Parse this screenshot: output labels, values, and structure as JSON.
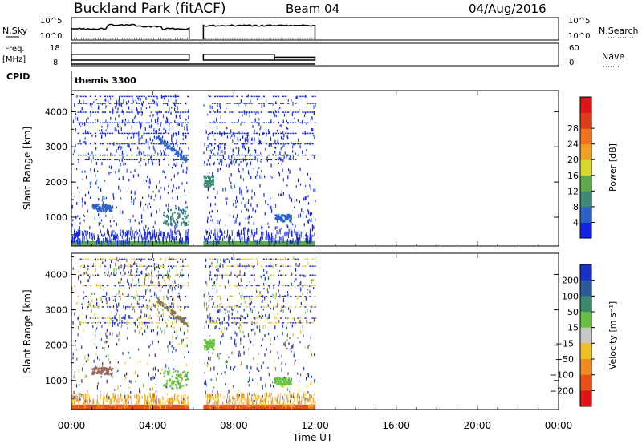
{
  "header": {
    "station": "Buckland Park (fitACF)",
    "beam": "Beam 04",
    "date": "04/Aug/2016"
  },
  "top_panels": {
    "nsky_label": "N.Sky",
    "nsky_ticks": [
      "10^5",
      "10^0"
    ],
    "nsky_right_ticks": [
      "10^5",
      "10^0"
    ],
    "nsearch_label": "N.Search",
    "freq_label_line1": "Freq.",
    "freq_label_line2": "[MHz]",
    "freq_ticks": [
      "18",
      "8"
    ],
    "nave_ticks": [
      "60",
      "0"
    ],
    "nave_label": "Nave",
    "cpid_label": "CPID",
    "cpid_value": "themis 3300"
  },
  "chart_data": [
    {
      "type": "heatmap",
      "name": "power",
      "ylabel": "Slant Range [km]",
      "xlabel": "",
      "x_ticks": [
        "00:00",
        "04:00",
        "08:00",
        "12:00",
        "16:00",
        "20:00",
        "00:00"
      ],
      "x_range_hours": [
        0,
        24
      ],
      "y_ticks": [
        "1000",
        "2000",
        "3000",
        "4000"
      ],
      "y_range_km": [
        180,
        4600
      ],
      "colorbar_label": "Power [dB]",
      "colorbar_ticks": [
        "4",
        "8",
        "12",
        "16",
        "20",
        "24",
        "28"
      ],
      "colorbar_colors": [
        "#1424e6",
        "#2a62c8",
        "#3d8a78",
        "#5caa4a",
        "#d8d82a",
        "#f0a020",
        "#f0701c",
        "#e03a18",
        "#e01414"
      ],
      "data_intervals_hours": [
        [
          0.0,
          5.8
        ],
        [
          6.5,
          12.0
        ]
      ],
      "features": [
        {
          "label": "ground band",
          "range_km": [
            180,
            320
          ],
          "time_hours": [
            0.0,
            12.0
          ],
          "color": "#5caa4a"
        },
        {
          "label": "scatter patch",
          "range_km": [
            1200,
            1400
          ],
          "time_hours": [
            1.0,
            2.0
          ],
          "color": "#2a62c8"
        },
        {
          "label": "scatter patch",
          "range_km": [
            800,
            1300
          ],
          "time_hours": [
            4.5,
            5.8
          ],
          "color": "#3d8a78"
        },
        {
          "label": "scatter patch",
          "range_km": [
            900,
            1100
          ],
          "time_hours": [
            10.0,
            10.8
          ],
          "color": "#2a62c8"
        },
        {
          "label": "scatter patch",
          "range_km": [
            1900,
            2200
          ],
          "time_hours": [
            6.5,
            7.0
          ],
          "color": "#3d8a78"
        },
        {
          "label": "arc",
          "range_km": [
            2600,
            3300
          ],
          "time_hours": [
            4.2,
            5.7
          ],
          "color": "#2a62c8"
        }
      ]
    },
    {
      "type": "heatmap",
      "name": "velocity",
      "ylabel": "Slant Range [km]",
      "xlabel": "Time UT",
      "x_ticks": [
        "00:00",
        "04:00",
        "08:00",
        "12:00",
        "16:00",
        "20:00",
        "00:00"
      ],
      "x_range_hours": [
        0,
        24
      ],
      "y_ticks": [
        "1000",
        "2000",
        "3000",
        "4000"
      ],
      "y_range_km": [
        180,
        4600
      ],
      "colorbar_label": "Velocity [m s⁻¹]",
      "colorbar_ticks": [
        "200",
        "100",
        "50",
        "15",
        "-15",
        "-50",
        "-100",
        "-200"
      ],
      "colorbar_colors": [
        "#1a2ec8",
        "#2a5a9a",
        "#3a8a6a",
        "#66c040",
        "#c8c8c8",
        "#f0c020",
        "#f08a20",
        "#e85018",
        "#e01414"
      ],
      "data_intervals_hours": [
        [
          0.0,
          5.8
        ],
        [
          6.5,
          12.0
        ]
      ],
      "features": [
        {
          "label": "ground band",
          "range_km": [
            180,
            320
          ],
          "time_hours": [
            0.0,
            12.0
          ],
          "color": "#e85018"
        },
        {
          "label": "scatter patch",
          "range_km": [
            1200,
            1400
          ],
          "time_hours": [
            1.0,
            2.0
          ],
          "color": "#9a6a5a"
        },
        {
          "label": "scatter patch",
          "range_km": [
            800,
            1300
          ],
          "time_hours": [
            4.5,
            5.8
          ],
          "color": "#66c040"
        },
        {
          "label": "scatter patch",
          "range_km": [
            900,
            1100
          ],
          "time_hours": [
            10.0,
            10.8
          ],
          "color": "#66c040"
        },
        {
          "label": "scatter patch",
          "range_km": [
            1900,
            2200
          ],
          "time_hours": [
            6.5,
            7.0
          ],
          "color": "#66c040"
        },
        {
          "label": "arc",
          "range_km": [
            2600,
            3300
          ],
          "time_hours": [
            4.2,
            5.7
          ],
          "color": "#8a7a4a"
        }
      ]
    }
  ],
  "top_series": {
    "nsky_intervals_hours": [
      [
        0.0,
        5.8
      ],
      [
        6.5,
        12.0
      ]
    ],
    "freq_mhz": [
      {
        "t": [
          0.0,
          5.8
        ],
        "hi": 13.5,
        "lo": 10.5
      },
      {
        "t": [
          6.5,
          10.0
        ],
        "hi": 13.5,
        "lo": 10.5
      },
      {
        "t": [
          10.0,
          12.0
        ],
        "hi": 12.0,
        "lo": 10.5
      }
    ]
  }
}
